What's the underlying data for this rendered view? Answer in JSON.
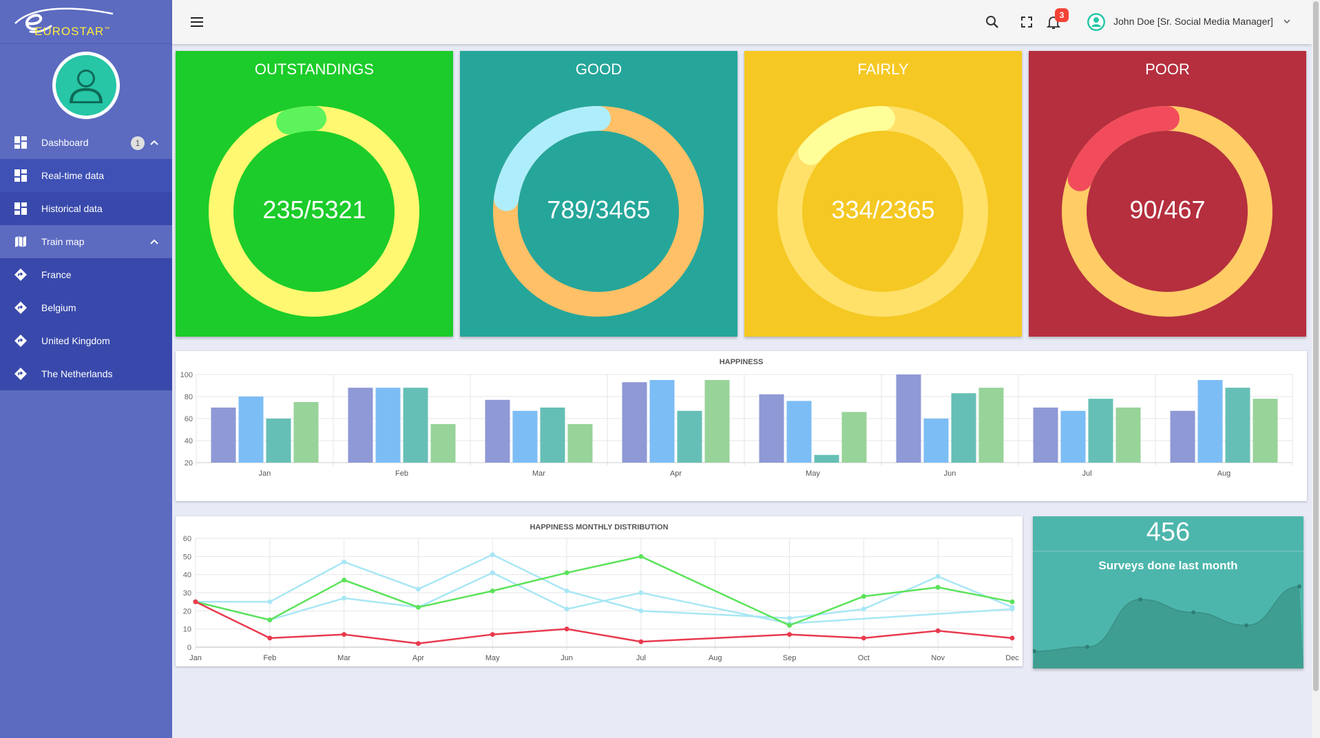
{
  "brand": {
    "logo_text": "EUROSTAR",
    "logo_mark": "™"
  },
  "sidebar": {
    "items": [
      {
        "label": "Dashboard",
        "icon": "dashboard-icon",
        "badge": "1"
      },
      {
        "label": "Real-time data",
        "icon": "dashboard-icon"
      },
      {
        "label": "Historical data",
        "icon": "dashboard-icon"
      },
      {
        "label": "Train map",
        "icon": "map-icon"
      },
      {
        "label": "France",
        "icon": "directions-icon"
      },
      {
        "label": "Belgium",
        "icon": "directions-icon"
      },
      {
        "label": "United Kingdom",
        "icon": "directions-icon"
      },
      {
        "label": "The Netherlands",
        "icon": "directions-icon"
      }
    ]
  },
  "topbar": {
    "notifications_count": "3",
    "user_name": "John Doe [Sr. Social Media Manager]"
  },
  "stats": [
    {
      "title": "OUTSTANDINGS",
      "value": "235/5321",
      "bg": "#1ccc2a",
      "track": "#fff870",
      "arc": "#5cf35c",
      "fraction": 0.044
    },
    {
      "title": "GOOD",
      "value": "789/3465",
      "bg": "#26a69a",
      "track": "#ffc067",
      "arc": "#aeeefc",
      "fraction": 0.228
    },
    {
      "title": "FAIRLY",
      "value": "334/2365",
      "bg": "#f5c823",
      "track": "#ffe16a",
      "arc": "#ffff99",
      "fraction": 0.141
    },
    {
      "title": "POOR",
      "value": "90/467",
      "bg": "#b52f3e",
      "track": "#ffcc66",
      "arc": "#f24c5c",
      "fraction": 0.193
    }
  ],
  "happiness_chart": {
    "chart_data": {
      "type": "bar",
      "title": "HAPPINESS",
      "categories": [
        "Jan",
        "Feb",
        "Mar",
        "Apr",
        "May",
        "Jun",
        "Jul",
        "Aug"
      ],
      "series": [
        {
          "color": "#8e99d6",
          "values": [
            70,
            88,
            77,
            93,
            82,
            100,
            70,
            67
          ]
        },
        {
          "color": "#7cbdf5",
          "values": [
            80,
            88,
            67,
            95,
            76,
            60,
            67,
            95
          ]
        },
        {
          "color": "#66bfb6",
          "values": [
            60,
            88,
            70,
            67,
            27,
            83,
            78,
            88
          ]
        },
        {
          "color": "#98d39a",
          "values": [
            75,
            55,
            55,
            95,
            66,
            88,
            70,
            78
          ]
        }
      ],
      "ylim": [
        20,
        100
      ],
      "yticks": [
        "20",
        "40",
        "60",
        "80",
        "100"
      ],
      "grid": true
    }
  },
  "distribution_chart": {
    "chart_data": {
      "type": "line",
      "title": "HAPPINESS MONTHLY DISTRIBUTION",
      "categories": [
        "Jan",
        "Feb",
        "Mar",
        "Apr",
        "May",
        "Jun",
        "Jul",
        "Aug",
        "Sep",
        "Oct",
        "Nov",
        "Dec"
      ],
      "series": [
        {
          "color": "#a8e7f5",
          "values": [
            25,
            25,
            47,
            32,
            51,
            31,
            20,
            null,
            16,
            21,
            39,
            22
          ]
        },
        {
          "color": "#a8e7f5",
          "values": [
            25,
            15,
            27,
            22,
            41,
            21,
            30,
            null,
            13,
            null,
            null,
            21
          ]
        },
        {
          "color": "#5be35a",
          "values": [
            25,
            15,
            37,
            22,
            31,
            41,
            50,
            null,
            12,
            28,
            33,
            25
          ]
        },
        {
          "color": "#e83a4e",
          "values": [
            25,
            5,
            7,
            2,
            7,
            10,
            3,
            null,
            7,
            5,
            9,
            5
          ]
        }
      ],
      "ylim": [
        0,
        60
      ],
      "yticks": [
        "0",
        "10",
        "20",
        "30",
        "40",
        "50",
        "60"
      ],
      "grid": true
    }
  },
  "surveys": {
    "count": "456",
    "label": "Surveys done last month",
    "chart_data": {
      "type": "area",
      "values": [
        8,
        10,
        32,
        26,
        20,
        38
      ]
    }
  }
}
